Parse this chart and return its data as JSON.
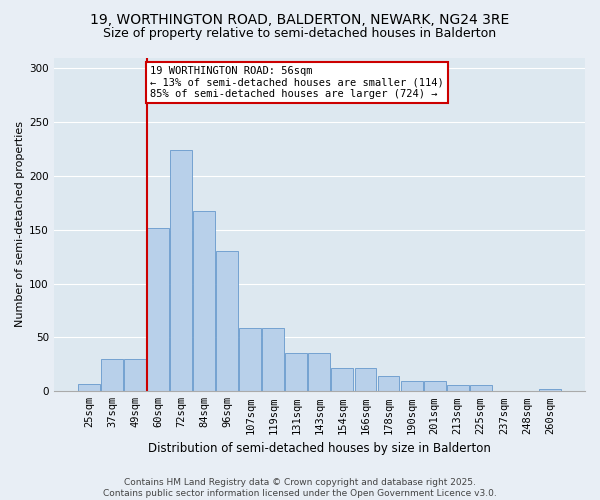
{
  "title1": "19, WORTHINGTON ROAD, BALDERTON, NEWARK, NG24 3RE",
  "title2": "Size of property relative to semi-detached houses in Balderton",
  "xlabel": "Distribution of semi-detached houses by size in Balderton",
  "ylabel": "Number of semi-detached properties",
  "categories": [
    "25sqm",
    "37sqm",
    "49sqm",
    "60sqm",
    "72sqm",
    "84sqm",
    "96sqm",
    "107sqm",
    "119sqm",
    "131sqm",
    "143sqm",
    "154sqm",
    "166sqm",
    "178sqm",
    "190sqm",
    "201sqm",
    "213sqm",
    "225sqm",
    "237sqm",
    "248sqm",
    "260sqm"
  ],
  "values": [
    7,
    30,
    30,
    152,
    224,
    167,
    130,
    59,
    59,
    36,
    36,
    22,
    22,
    14,
    10,
    10,
    6,
    6,
    0,
    0,
    2
  ],
  "bar_color": "#b8d0ea",
  "bar_edge_color": "#6699cc",
  "vline_x_index": 3,
  "vline_color": "#cc0000",
  "annotation_text": "19 WORTHINGTON ROAD: 56sqm\n← 13% of semi-detached houses are smaller (114)\n85% of semi-detached houses are larger (724) →",
  "annotation_box_color": "#ffffff",
  "annotation_box_edge": "#cc0000",
  "ylim": [
    0,
    310
  ],
  "yticks": [
    0,
    50,
    100,
    150,
    200,
    250,
    300
  ],
  "bg_color": "#dde8f0",
  "fig_bg_color": "#e8eef5",
  "grid_color": "#ffffff",
  "footnote": "Contains HM Land Registry data © Crown copyright and database right 2025.\nContains public sector information licensed under the Open Government Licence v3.0.",
  "title1_fontsize": 10,
  "title2_fontsize": 9,
  "xlabel_fontsize": 8.5,
  "ylabel_fontsize": 8,
  "tick_fontsize": 7.5,
  "footnote_fontsize": 6.5,
  "annot_fontsize": 7.5
}
